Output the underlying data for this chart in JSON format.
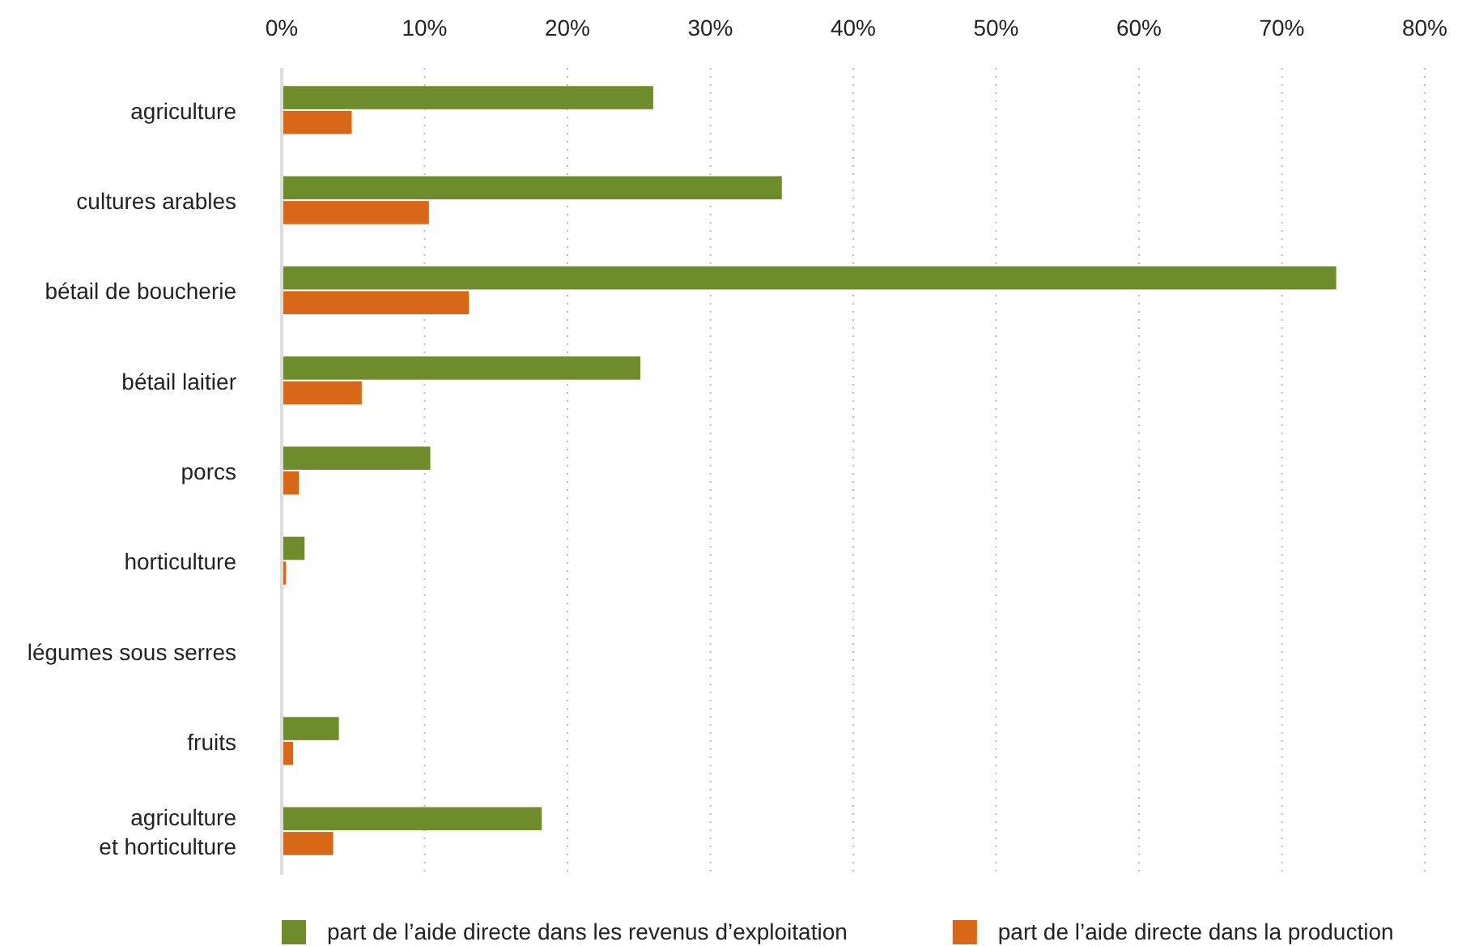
{
  "chart_data": {
    "type": "bar",
    "orientation": "horizontal",
    "categories": [
      "agriculture",
      "cultures arables",
      "bétail de boucherie",
      "bétail laitier",
      "porcs",
      "horticulture",
      "légumes sous serres",
      "fruits",
      "agriculture\net horticulture"
    ],
    "series": [
      {
        "name": "part de l’aide directe dans les revenus d’exploitation",
        "color": "#6f8c2c",
        "values": [
          26.0,
          35.0,
          73.8,
          25.1,
          10.4,
          1.6,
          null,
          4.0,
          18.2
        ]
      },
      {
        "name": "part de l’aide directe dans la production",
        "color": "#d86817",
        "values": [
          4.9,
          10.3,
          13.1,
          5.6,
          1.2,
          0.3,
          null,
          0.8,
          3.6
        ]
      }
    ],
    "xlim": [
      0,
      80
    ],
    "xticks": [
      {
        "value": 0,
        "label": "0%"
      },
      {
        "value": 10,
        "label": "10%"
      },
      {
        "value": 20,
        "label": "20%"
      },
      {
        "value": 30,
        "label": "30%"
      },
      {
        "value": 40,
        "label": "40%"
      },
      {
        "value": 50,
        "label": "50%"
      },
      {
        "value": 60,
        "label": "60%"
      },
      {
        "value": 70,
        "label": "70%"
      },
      {
        "value": 80,
        "label": "80%"
      }
    ],
    "grid": "x",
    "legend": "bottom"
  }
}
